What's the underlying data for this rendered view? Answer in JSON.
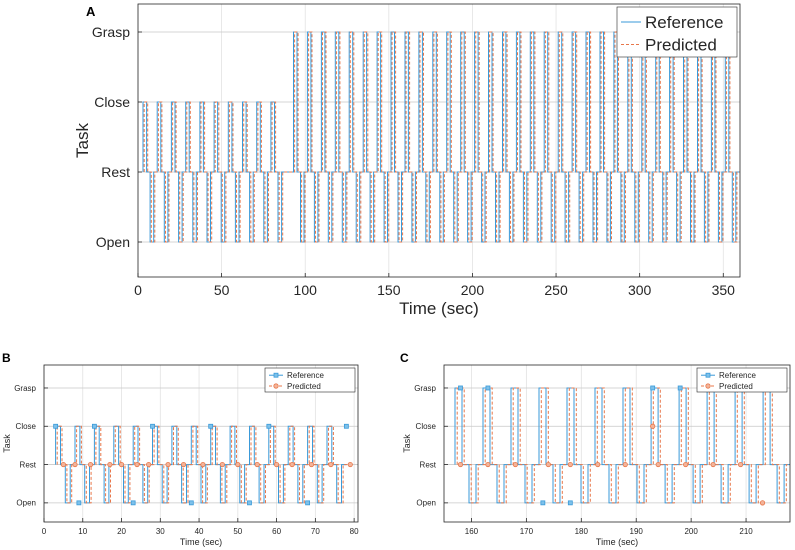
{
  "chart_data": [
    {
      "panel": "A",
      "type": "line",
      "xlabel": "Time (sec)",
      "ylabel": "Task",
      "xlim": [
        0,
        360
      ],
      "ylim": [
        -0.5,
        3.4
      ],
      "xticks": [
        0,
        50,
        100,
        150,
        200,
        250,
        300,
        350
      ],
      "yticks": [
        0,
        1,
        2,
        3
      ],
      "ytick_labels": [
        "Open",
        "Rest",
        "Close",
        "Grasp"
      ],
      "grid": true,
      "legend_position": "top-right",
      "colors": {
        "Reference": "#3a9ad9",
        "Predicted": "#e8774a"
      },
      "series": [
        {
          "name": "Reference",
          "style": "solid"
        },
        {
          "name": "Predicted",
          "style": "dashed"
        }
      ],
      "cycles": [
        {
          "x_start": 3,
          "x_end": 88,
          "period": 8.5,
          "high": 2,
          "low": 0
        },
        {
          "x_start": 93,
          "x_end": 358,
          "period": 8.33,
          "high": 3,
          "low": 0
        }
      ]
    },
    {
      "panel": "B",
      "type": "line",
      "xlabel": "Time (sec)",
      "ylabel": "Task",
      "xlim": [
        0,
        81
      ],
      "ylim": [
        -0.5,
        3.6
      ],
      "xticks": [
        0,
        10,
        20,
        30,
        40,
        50,
        60,
        70,
        80
      ],
      "yticks": [
        0,
        1,
        2,
        3
      ],
      "ytick_labels": [
        "Open",
        "Rest",
        "Close",
        "Grasp"
      ],
      "grid": true,
      "legend_position": "top-right",
      "colors": {
        "Reference": "#3a9ad9",
        "Predicted": "#e8774a"
      },
      "series": [
        {
          "name": "Reference",
          "style": "solid-marker-square"
        },
        {
          "name": "Predicted",
          "style": "dashed-marker-circle"
        }
      ],
      "cycles": [
        {
          "x_start": 3,
          "x_end": 80,
          "period": 5,
          "high": 2,
          "low": 0
        }
      ],
      "reference_markers": [
        [
          3,
          2
        ],
        [
          9,
          0
        ],
        [
          13,
          2
        ],
        [
          23,
          0
        ],
        [
          28,
          2
        ],
        [
          38,
          0
        ],
        [
          43,
          2
        ],
        [
          53,
          0
        ],
        [
          58,
          2
        ],
        [
          68,
          0
        ],
        [
          78,
          2
        ]
      ],
      "predicted_markers": [
        [
          5,
          1
        ],
        [
          8,
          1
        ],
        [
          12,
          1
        ],
        [
          17,
          1
        ],
        [
          20,
          1
        ],
        [
          24,
          1
        ],
        [
          27,
          1
        ],
        [
          32,
          1
        ],
        [
          36,
          1
        ],
        [
          41,
          1
        ],
        [
          46,
          1
        ],
        [
          50,
          1
        ],
        [
          55,
          1
        ],
        [
          60,
          1
        ],
        [
          64,
          1
        ],
        [
          69,
          1
        ],
        [
          74,
          1
        ],
        [
          79,
          1
        ]
      ]
    },
    {
      "panel": "C",
      "type": "line",
      "xlabel": "Time (sec)",
      "ylabel": "Task",
      "xlim": [
        155,
        218
      ],
      "ylim": [
        -0.5,
        3.6
      ],
      "xticks": [
        160,
        170,
        180,
        190,
        200,
        210
      ],
      "yticks": [
        0,
        1,
        2,
        3
      ],
      "ytick_labels": [
        "Open",
        "Rest",
        "Close",
        "Grasp"
      ],
      "grid": true,
      "legend_position": "top-right",
      "colors": {
        "Reference": "#3a9ad9",
        "Predicted": "#e8774a"
      },
      "series": [
        {
          "name": "Reference",
          "style": "solid-marker-square"
        },
        {
          "name": "Predicted",
          "style": "dashed-marker-circle"
        }
      ],
      "cycles": [
        {
          "x_start": 157,
          "x_end": 217,
          "period": 5.1,
          "high": 3,
          "low": 0
        }
      ],
      "reference_markers": [
        [
          158,
          3
        ],
        [
          163,
          3
        ],
        [
          173,
          0
        ],
        [
          178,
          0
        ],
        [
          193,
          3
        ],
        [
          198,
          3
        ]
      ],
      "predicted_markers": [
        [
          158,
          1
        ],
        [
          163,
          1
        ],
        [
          168,
          1
        ],
        [
          174,
          1
        ],
        [
          178,
          1
        ],
        [
          183,
          1
        ],
        [
          188,
          1
        ],
        [
          193,
          2
        ],
        [
          194,
          1
        ],
        [
          199,
          1
        ],
        [
          204,
          1
        ],
        [
          209,
          1
        ],
        [
          213,
          0
        ]
      ]
    }
  ]
}
